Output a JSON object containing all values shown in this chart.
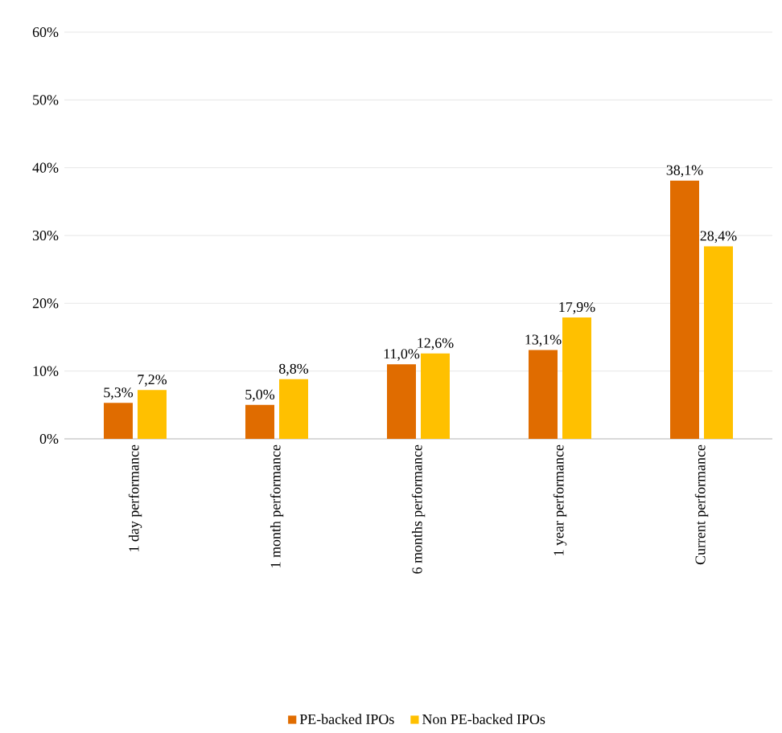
{
  "chart_data": {
    "type": "bar",
    "categories": [
      "1 day performance",
      "1 month performance",
      "6 months performance",
      "1 year performance",
      "Current performance"
    ],
    "series": [
      {
        "name": "PE-backed IPOs",
        "color": "#e06c00",
        "values": [
          5.3,
          5.0,
          11.0,
          13.1,
          38.1
        ],
        "value_labels": [
          "5,3%",
          "5,0%",
          "11,0%",
          "13,1%",
          "38,1%"
        ]
      },
      {
        "name": "Non PE-backed IPOs",
        "color": "#ffc000",
        "values": [
          7.2,
          8.8,
          12.6,
          17.9,
          28.4
        ],
        "value_labels": [
          "7,2%",
          "8,8%",
          "12,6%",
          "17,9%",
          "28,4%"
        ]
      }
    ],
    "ylim": [
      0,
      60
    ],
    "yticks": [
      {
        "value": 0,
        "label": "0%"
      },
      {
        "value": 10,
        "label": "10%"
      },
      {
        "value": 20,
        "label": "20%"
      },
      {
        "value": 30,
        "label": "30%"
      },
      {
        "value": 40,
        "label": "40%"
      },
      {
        "value": 50,
        "label": "50%"
      },
      {
        "value": 60,
        "label": "60%"
      }
    ],
    "grid": "y",
    "legend": "bottom"
  }
}
